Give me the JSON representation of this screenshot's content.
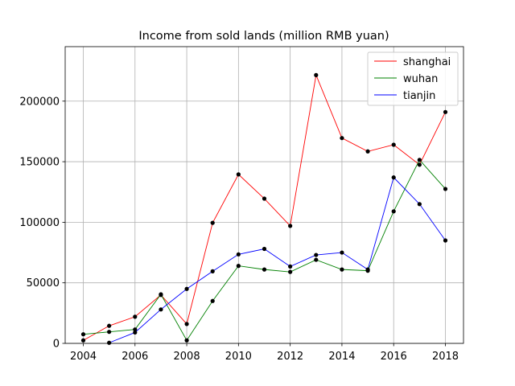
{
  "chart_data": {
    "type": "line",
    "title": "Income from sold lands (million RMB yuan)",
    "xlabel": "",
    "ylabel": "",
    "xlim": [
      2003.3,
      2018.7
    ],
    "ylim": [
      0,
      245000
    ],
    "xticks": [
      2004,
      2006,
      2008,
      2010,
      2012,
      2014,
      2016,
      2018
    ],
    "yticks": [
      0,
      50000,
      100000,
      150000,
      200000
    ],
    "grid": true,
    "legend_position": "top-right",
    "marker_color": "#000000",
    "series": [
      {
        "name": "shanghai",
        "color": "#ff0000",
        "x": [
          2004,
          2005,
          2006,
          2007,
          2008,
          2009,
          2010,
          2011,
          2012,
          2013,
          2014,
          2015,
          2016,
          2017,
          2018
        ],
        "values": [
          2500,
          14500,
          22000,
          40000,
          16000,
          99500,
          139500,
          119500,
          97000,
          221500,
          169500,
          158500,
          164000,
          147500,
          191000
        ]
      },
      {
        "name": "wuhan",
        "color": "#008000",
        "x": [
          2004,
          2005,
          2006,
          2007,
          2008,
          2009,
          2010,
          2011,
          2012,
          2013,
          2014,
          2015,
          2016,
          2017,
          2018
        ],
        "values": [
          7500,
          9500,
          11500,
          40500,
          2500,
          35000,
          64000,
          61000,
          59000,
          69000,
          61000,
          60000,
          109000,
          151500,
          127500
        ]
      },
      {
        "name": "tianjin",
        "color": "#0000ff",
        "x": [
          2005,
          2006,
          2007,
          2008,
          2009,
          2010,
          2011,
          2012,
          2013,
          2014,
          2015,
          2016,
          2017,
          2018
        ],
        "values": [
          500,
          9000,
          28000,
          45000,
          59500,
          73500,
          78000,
          63500,
          73000,
          75000,
          61000,
          137000,
          115000,
          85000
        ]
      }
    ]
  }
}
